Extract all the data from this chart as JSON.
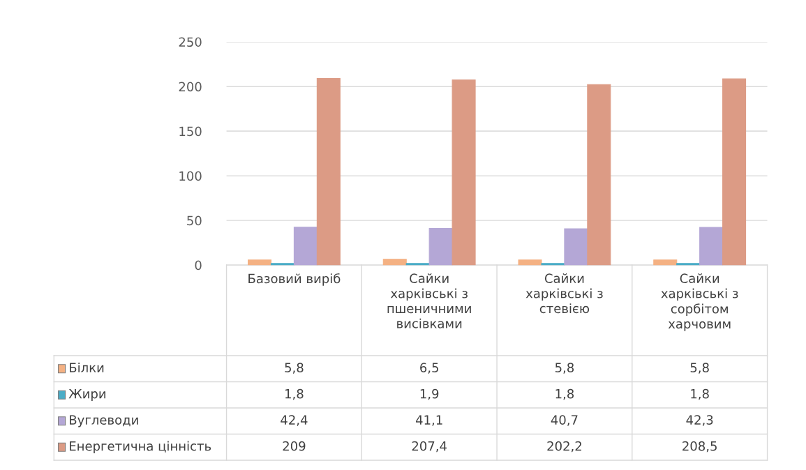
{
  "chart_data": {
    "type": "bar",
    "categories": [
      "Базовий виріб",
      "Сайки харківські з пшеничними висівками",
      "Сайки харківські з стевією",
      "Сайки харківські з сорбітом харчовим"
    ],
    "series": [
      {
        "name": "Білки",
        "color": "#f4b183",
        "values": [
          5.8,
          6.5,
          5.8,
          5.8
        ],
        "value_labels": [
          "5,8",
          "6,5",
          "5,8",
          "5,8"
        ]
      },
      {
        "name": "Жири",
        "color": "#4bacc6",
        "values": [
          1.8,
          1.9,
          1.8,
          1.8
        ],
        "value_labels": [
          "1,8",
          "1,9",
          "1,8",
          "1,8"
        ]
      },
      {
        "name": "Вуглеводи",
        "color": "#b4a7d6",
        "values": [
          42.4,
          41.1,
          40.7,
          42.3
        ],
        "value_labels": [
          "42,4",
          "41,1",
          "40,7",
          "42,3"
        ]
      },
      {
        "name": "Енергетична цінність",
        "color": "#dc9b85",
        "values": [
          209,
          207.4,
          202.2,
          208.5
        ],
        "value_labels": [
          "209",
          "207,4",
          "202,2",
          "208,5"
        ]
      }
    ],
    "ylim": [
      0,
      250
    ],
    "yticks": [
      0,
      50,
      100,
      150,
      200,
      250
    ],
    "grid": "y",
    "legend": "bottom"
  }
}
